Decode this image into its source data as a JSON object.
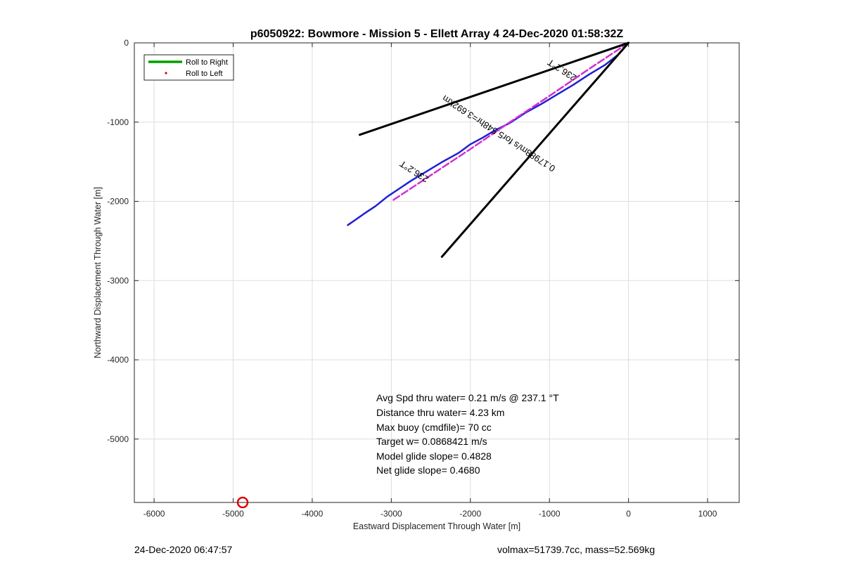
{
  "chart_data": {
    "type": "line",
    "title": "p6050922: Bowmore - Mission 5 - Ellett Array 4 24-Dec-2020 01:58:32Z",
    "xlabel": "Eastward Displacement Through Water [m]",
    "ylabel": "Northward Displacement Through Water [m]",
    "xlim": [
      -6250,
      1400
    ],
    "ylim": [
      -5800,
      0
    ],
    "xticks": [
      -6000,
      -5000,
      -4000,
      -3000,
      -2000,
      -1000,
      0,
      1000
    ],
    "xtick_labels": [
      "-6000",
      "-5000",
      "-4000",
      "-3000",
      "-2000",
      "-1000",
      "0",
      "1000"
    ],
    "yticks": [
      0,
      -1000,
      -2000,
      -3000,
      -4000,
      -5000
    ],
    "ytick_labels": [
      "0",
      "-1000",
      "-2000",
      "-3000",
      "-4000",
      "-5000"
    ],
    "grid": true,
    "legend": {
      "placement": "top-left",
      "entries": [
        {
          "label": "Roll to Right",
          "color": "#00a000",
          "style": "line"
        },
        {
          "label": "Roll to Left",
          "color": "#e00000",
          "style": "dot"
        }
      ]
    },
    "series": [
      {
        "color": "#1f1fd6",
        "x": [
          0,
          -120,
          -300,
          -500,
          -700,
          -900,
          -1100,
          -1300,
          -1500,
          -1700,
          -1850,
          -2000,
          -2150,
          -2350,
          -2550,
          -2750,
          -2900,
          -3050,
          -3200,
          -3350,
          -3450,
          -3550
        ],
        "y": [
          0,
          -140,
          -280,
          -400,
          -530,
          -650,
          -770,
          -880,
          -1010,
          -1110,
          -1200,
          -1280,
          -1390,
          -1500,
          -1620,
          -1740,
          -1840,
          -1940,
          -2060,
          -2160,
          -2230,
          -2300
        ]
      },
      {
        "color": "#d030d0",
        "x": [
          0,
          -500,
          -1000,
          -1500,
          -2000,
          -2500,
          -3000
        ],
        "y": [
          0,
          -330,
          -670,
          -1000,
          -1340,
          -1670,
          -2000
        ]
      },
      {
        "color": "#000000",
        "x": [
          0,
          -3400
        ],
        "y": [
          0,
          -1160
        ]
      },
      {
        "color": "#000000",
        "x": [
          0,
          -2360
        ],
        "y": [
          0,
          -2700
        ]
      }
    ],
    "markers": [
      {
        "x": -4880,
        "y": -5800,
        "color": "#e00000",
        "shape": "circle"
      }
    ],
    "annotations": [
      {
        "text": "236.2°T",
        "x": -820,
        "y": -310,
        "angle": 213
      },
      {
        "text": "236.2°T",
        "x": -2690,
        "y": -1590,
        "angle": 213
      },
      {
        "text": "0.17988m/s for5.548hr=3.692km",
        "x": -1620,
        "y": -1110,
        "angle": 213
      }
    ],
    "stats": [
      "Avg Spd thru water=  0.21 m/s @ 237.1 °T",
      "Distance thru water=  4.23 km",
      "Max buoy (cmdfile)= 70 cc",
      "Target w= 0.0868421 m/s",
      "Model glide slope= 0.4828",
      "Net glide slope= 0.4680"
    ]
  },
  "footer": {
    "left": "24-Dec-2020 06:47:57",
    "right": "volmax=51739.7cc, mass=52.569kg"
  }
}
